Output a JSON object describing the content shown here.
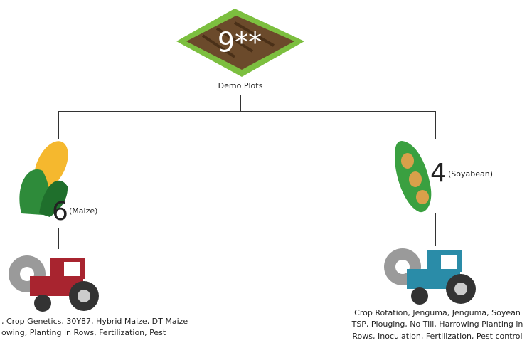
{
  "root": {
    "count": "9**",
    "label": "Demo Plots"
  },
  "branches": [
    {
      "count": "6",
      "crop": "(Maize)",
      "practices": [
        ", Crop Genetics, 30Y87, Hybrid Maize, DT Maize",
        "owing, Planting in Rows, Fertilization, Pest"
      ]
    },
    {
      "count": "4",
      "crop": "(Soyabean)",
      "practices": [
        "Crop Rotation, Jenguma, Jenguma, Soyean",
        "TSP, Plouging, No Till, Harrowing Planting in",
        "Rows, Inoculation, Fertilization, Pest control"
      ]
    }
  ]
}
